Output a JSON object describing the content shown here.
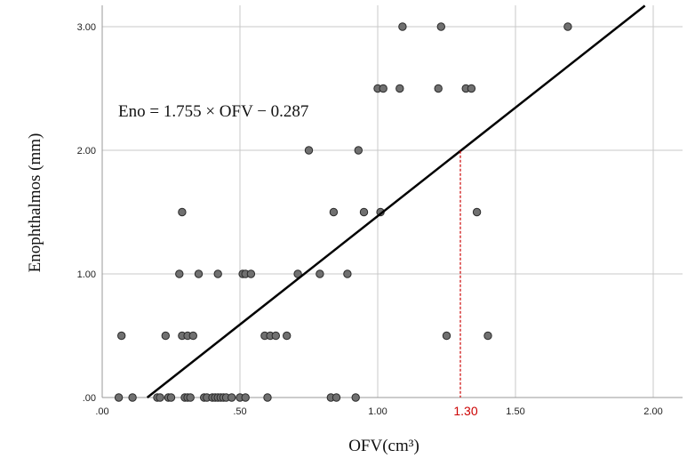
{
  "chart_data": {
    "type": "scatter",
    "title": "",
    "xlabel": "OFV(cm³)",
    "ylabel": "Enophthalmos (mm)",
    "xlim": [
      0,
      2.1
    ],
    "ylim": [
      0,
      3.15
    ],
    "x_ticks": [
      ".00",
      ".50",
      "1.00",
      "1.50",
      "2.00"
    ],
    "y_ticks": [
      ".00",
      "1.00",
      "2.00",
      "3.00"
    ],
    "grid": true,
    "legend": "none",
    "point_color": "#707070",
    "line_color": "#000000",
    "cutoff_color": "#cc0000",
    "regression": {
      "equation": "Eno = 1.755 × OFV − 0.287",
      "slope": 1.755,
      "intercept": -0.287
    },
    "cutoff": {
      "x": 1.3,
      "label": "1.30"
    },
    "points": [
      [
        0.06,
        0.0
      ],
      [
        0.07,
        0.5
      ],
      [
        0.11,
        0.0
      ],
      [
        0.2,
        0.0
      ],
      [
        0.21,
        0.0
      ],
      [
        0.23,
        0.5
      ],
      [
        0.24,
        0.0
      ],
      [
        0.25,
        0.0
      ],
      [
        0.28,
        1.0
      ],
      [
        0.29,
        1.5
      ],
      [
        0.29,
        0.5
      ],
      [
        0.3,
        0.0
      ],
      [
        0.31,
        0.5
      ],
      [
        0.31,
        0.0
      ],
      [
        0.32,
        0.0
      ],
      [
        0.33,
        0.5
      ],
      [
        0.35,
        1.0
      ],
      [
        0.37,
        0.0
      ],
      [
        0.38,
        0.0
      ],
      [
        0.4,
        0.0
      ],
      [
        0.41,
        0.0
      ],
      [
        0.42,
        1.0
      ],
      [
        0.42,
        0.0
      ],
      [
        0.43,
        0.0
      ],
      [
        0.44,
        0.0
      ],
      [
        0.45,
        0.0
      ],
      [
        0.47,
        0.0
      ],
      [
        0.5,
        0.0
      ],
      [
        0.51,
        1.0
      ],
      [
        0.52,
        1.0
      ],
      [
        0.52,
        0.0
      ],
      [
        0.54,
        1.0
      ],
      [
        0.59,
        0.5
      ],
      [
        0.6,
        0.0
      ],
      [
        0.61,
        0.5
      ],
      [
        0.63,
        0.5
      ],
      [
        0.67,
        0.5
      ],
      [
        0.71,
        1.0
      ],
      [
        0.75,
        2.0
      ],
      [
        0.79,
        1.0
      ],
      [
        0.83,
        0.0
      ],
      [
        0.84,
        1.5
      ],
      [
        0.85,
        0.0
      ],
      [
        0.89,
        1.0
      ],
      [
        0.92,
        0.0
      ],
      [
        0.93,
        2.0
      ],
      [
        0.95,
        1.5
      ],
      [
        1.0,
        2.5
      ],
      [
        1.01,
        1.5
      ],
      [
        1.02,
        2.5
      ],
      [
        1.08,
        2.5
      ],
      [
        1.09,
        3.0
      ],
      [
        1.22,
        2.5
      ],
      [
        1.23,
        3.0
      ],
      [
        1.25,
        0.5
      ],
      [
        1.32,
        2.5
      ],
      [
        1.34,
        2.5
      ],
      [
        1.36,
        1.5
      ],
      [
        1.4,
        0.5
      ],
      [
        1.69,
        3.0
      ]
    ]
  }
}
